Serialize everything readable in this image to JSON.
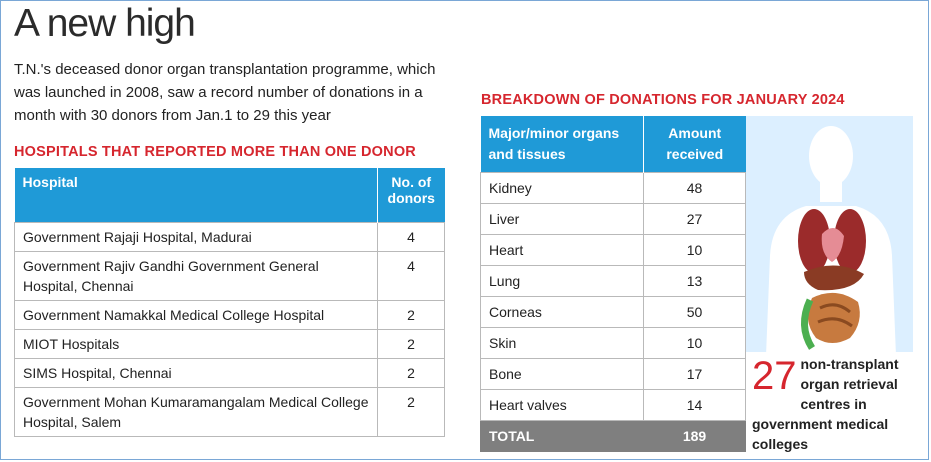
{
  "title": "A new high",
  "intro": "T.N.'s deceased donor organ transplantation programme, which was launched in 2008, saw a record number of donations in a month with 30 donors from Jan.1 to 29 this year",
  "hospitals": {
    "heading": "HOSPITALS THAT REPORTED MORE THAN ONE DONOR",
    "col_hospital": "Hospital",
    "col_donors": "No. of donors",
    "rows": [
      {
        "name": "Government Rajaji Hospital, Madurai",
        "donors": "4"
      },
      {
        "name": "Government Rajiv Gandhi Government General Hospital, Chennai",
        "donors": "4"
      },
      {
        "name": "Government Namakkal Medical College Hospital",
        "donors": "2"
      },
      {
        "name": "MIOT Hospitals",
        "donors": "2"
      },
      {
        "name": "SIMS Hospital, Chennai",
        "donors": "2"
      },
      {
        "name": "Government Mohan Kumaramangalam Medical College Hospital, Salem",
        "donors": "2"
      }
    ]
  },
  "breakdown": {
    "heading": "BREAKDOWN OF DONATIONS FOR JANUARY 2024",
    "col_organ": "Major/minor organs and tissues",
    "col_amount": "Amount received",
    "rows": [
      {
        "organ": "Kidney",
        "amount": "48"
      },
      {
        "organ": "Liver",
        "amount": "27"
      },
      {
        "organ": "Heart",
        "amount": "10"
      },
      {
        "organ": "Lung",
        "amount": "13"
      },
      {
        "organ": "Corneas",
        "amount": "50"
      },
      {
        "organ": "Skin",
        "amount": "10"
      },
      {
        "organ": "Bone",
        "amount": "17"
      },
      {
        "organ": "Heart valves",
        "amount": "14"
      }
    ],
    "total_label": "TOTAL",
    "total_value": "189"
  },
  "side_note": {
    "number": "27",
    "text": "non-transplant organ retrieval centres in government medical colleges"
  },
  "colors": {
    "accent_red": "#d6262e",
    "header_blue": "#1f9ad7",
    "panel_blue": "#dcefff",
    "total_grey": "#7f7f7f"
  }
}
